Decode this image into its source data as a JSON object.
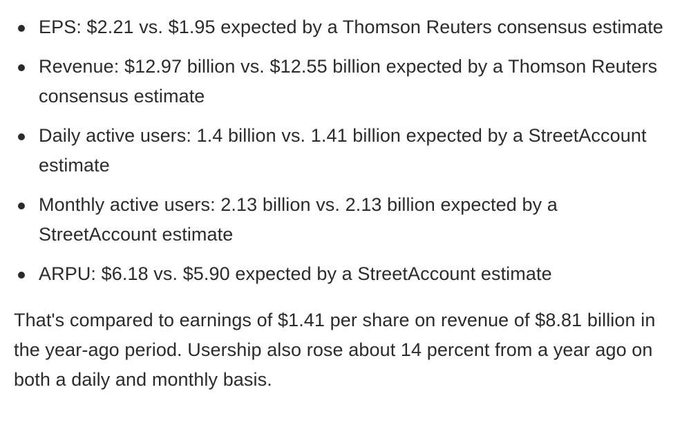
{
  "bullets": [
    "EPS: $2.21 vs. $1.95 expected by a Thomson Reuters consensus estimate",
    "Revenue: $12.97 billion vs. $12.55 billion expected by a Thomson Reuters consensus estimate",
    "Daily active users: 1.4 billion vs. 1.41 billion expected by a StreetAccount estimate",
    "Monthly active users: 2.13 billion vs. 2.13 billion expected by a StreetAccount estimate",
    "ARPU: $6.18 vs. $5.90 expected by a StreetAccount estimate"
  ],
  "summary": "That's compared to earnings of $1.41 per share on revenue of $8.81 billion in the year-ago period. Usership also rose about 14 percent from a year ago on both a daily and monthly basis."
}
